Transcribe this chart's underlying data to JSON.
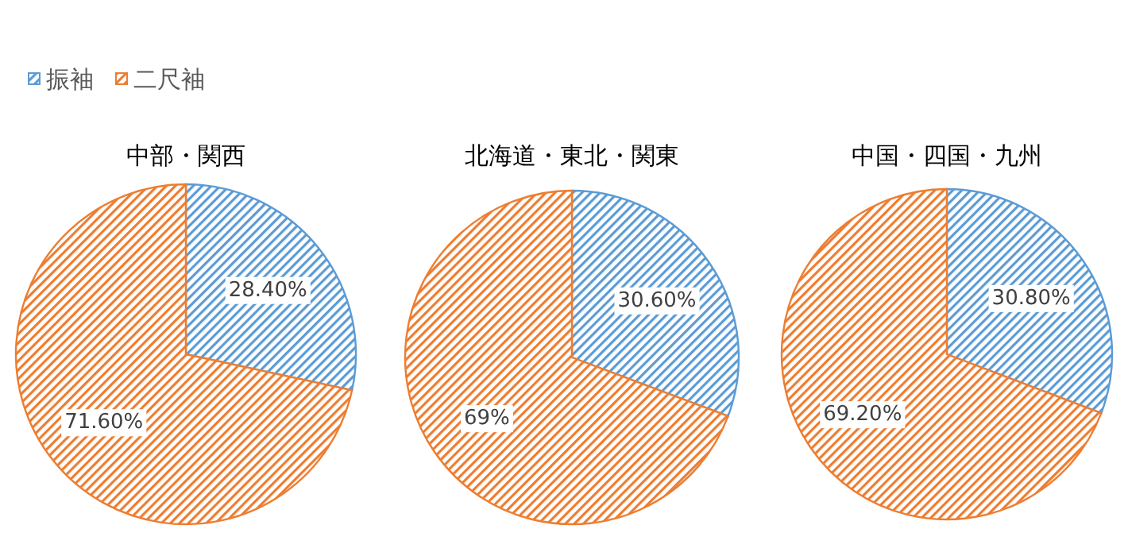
{
  "chart_data": [
    {
      "type": "pie",
      "title": "中部・関西",
      "categories": [
        "振袖",
        "二尺袖"
      ],
      "values": [
        28.4,
        71.6
      ],
      "colors": [
        "#5b9bd5",
        "#ed7d31"
      ],
      "value_labels": [
        "28.40%",
        "71.60%"
      ],
      "legend": "top left"
    },
    {
      "type": "pie",
      "title": "北海道・東北・関東",
      "categories": [
        null,
        null
      ],
      "values": [
        30.6,
        69
      ],
      "colors": [
        "#5b9bd5",
        "#ed7d31"
      ],
      "value_labels": [
        "30.60%",
        "69%"
      ]
    },
    {
      "type": "pie",
      "title": "中国・四国・九州",
      "categories": [
        null,
        null
      ],
      "values": [
        30.8,
        69.2
      ],
      "colors": [
        "#5b9bd5",
        "#ed7d31"
      ],
      "value_labels": [
        "30.80%",
        "69.20%"
      ]
    }
  ]
}
